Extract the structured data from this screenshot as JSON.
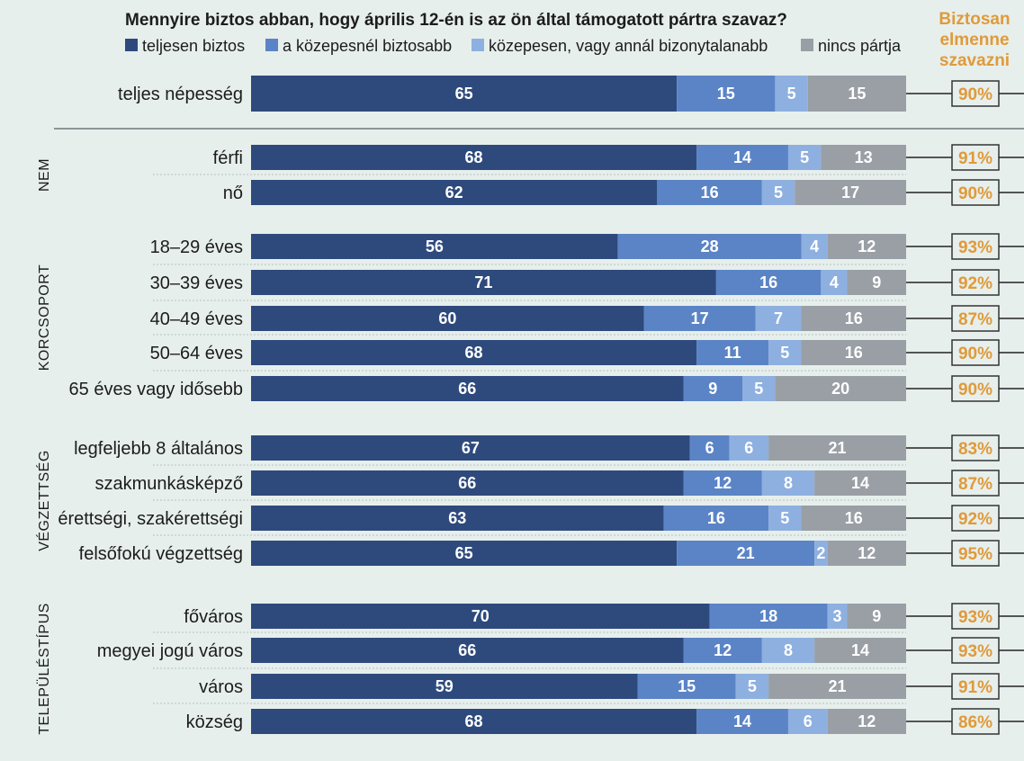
{
  "chart_data": {
    "type": "bar",
    "orientation": "horizontal",
    "stacked": true,
    "title": "Mennyire biztos abban, hogy április 12-én is az ön által támogatott pártra szavaz?",
    "right_column_title": [
      "Biztosan",
      "elmenne",
      "szavazni"
    ],
    "legend_position": "top",
    "xlim": [
      0,
      100
    ],
    "series": [
      {
        "name": "teljesen biztos",
        "color": "#2e4a7d"
      },
      {
        "name": "a közepesnél biztosabb",
        "color": "#5b84c6"
      },
      {
        "name": "közepesen, vagy annál bizonytalanabb",
        "color": "#8eb0e0"
      },
      {
        "name": "nincs pártja",
        "color": "#9a9fa5"
      }
    ],
    "accent_color": "#e09a3a",
    "groups": [
      {
        "label": "",
        "rows": [
          {
            "category": "teljes népesség",
            "values": [
              65,
              15,
              5,
              15
            ],
            "sure_to_vote": "90%"
          }
        ]
      },
      {
        "label": "NEM",
        "rows": [
          {
            "category": "férfi",
            "values": [
              68,
              14,
              5,
              13
            ],
            "sure_to_vote": "91%"
          },
          {
            "category": "nő",
            "values": [
              62,
              16,
              5,
              17
            ],
            "sure_to_vote": "90%"
          }
        ]
      },
      {
        "label": "KORCSOPORT",
        "rows": [
          {
            "category": "18–29 éves",
            "values": [
              56,
              28,
              4,
              12
            ],
            "sure_to_vote": "93%"
          },
          {
            "category": "30–39 éves",
            "values": [
              71,
              16,
              4,
              9
            ],
            "sure_to_vote": "92%"
          },
          {
            "category": "40–49 éves",
            "values": [
              60,
              17,
              7,
              16
            ],
            "sure_to_vote": "87%"
          },
          {
            "category": "50–64 éves",
            "values": [
              68,
              11,
              5,
              16
            ],
            "sure_to_vote": "90%"
          },
          {
            "category": "65 éves vagy idősebb",
            "values": [
              66,
              9,
              5,
              20
            ],
            "sure_to_vote": "90%"
          }
        ]
      },
      {
        "label": "VÉGZETTSÉG",
        "rows": [
          {
            "category": "legfeljebb 8 általános",
            "values": [
              67,
              6,
              6,
              21
            ],
            "sure_to_vote": "83%"
          },
          {
            "category": "szakmunkásképző",
            "values": [
              66,
              12,
              8,
              14
            ],
            "sure_to_vote": "87%"
          },
          {
            "category": "érettségi, szakérettségi",
            "values": [
              63,
              16,
              5,
              16
            ],
            "sure_to_vote": "92%"
          },
          {
            "category": "felsőfokú végzettség",
            "values": [
              65,
              21,
              2,
              12
            ],
            "sure_to_vote": "95%"
          }
        ]
      },
      {
        "label": "TELEPÜLÉSTÍPUS",
        "rows": [
          {
            "category": "főváros",
            "values": [
              70,
              18,
              3,
              9
            ],
            "sure_to_vote": "93%"
          },
          {
            "category": "megyei jogú város",
            "values": [
              66,
              12,
              8,
              14
            ],
            "sure_to_vote": "93%"
          },
          {
            "category": "város",
            "values": [
              59,
              15,
              5,
              21
            ],
            "sure_to_vote": "91%"
          },
          {
            "category": "község",
            "values": [
              68,
              14,
              6,
              12
            ],
            "sure_to_vote": "86%"
          }
        ]
      }
    ]
  }
}
